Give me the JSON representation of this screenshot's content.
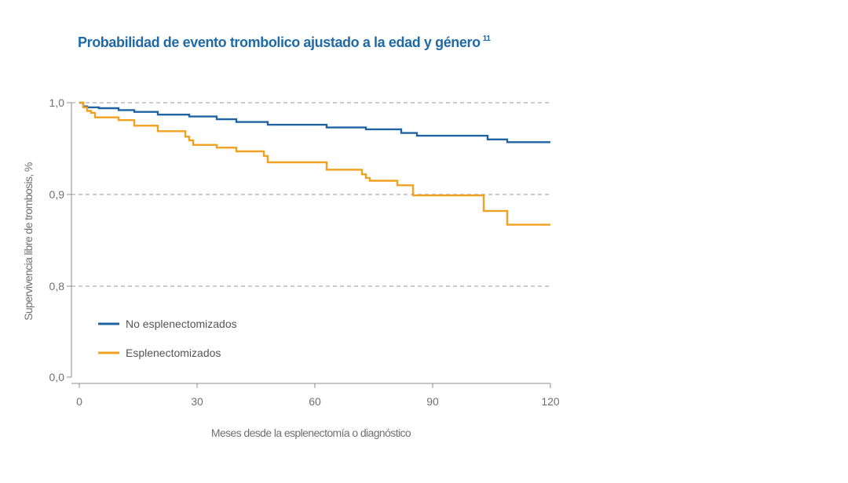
{
  "colors": {
    "title": "#1e6aa8",
    "axis": "#8c8c8c",
    "grid": "#9a9a9a",
    "text": "#707070",
    "legend_text": "#555555"
  },
  "chart_data": {
    "type": "line",
    "step": true,
    "title": "Probabilidad de evento trombolico ajustado a la edad y género",
    "title_superscript": "11",
    "xlabel": "Meses desde la esplenectomía o diagnóstico",
    "ylabel": "Supervivencia libre de trombosis, %",
    "xlim": [
      0,
      120
    ],
    "xticks": [
      "0",
      "30",
      "60",
      "90",
      "120"
    ],
    "yticks": [
      "0,0",
      "0,8",
      "0,9",
      "1,0"
    ],
    "y_axis_broken": true,
    "grid": "dashed horizontal at 0,8 / 0,9 / 1,0",
    "legend_position": "lower-left",
    "series": [
      {
        "name": "No esplenectomizados",
        "color": "#1f63a0",
        "x": [
          0,
          1,
          2,
          5,
          10,
          14,
          20,
          28,
          35,
          40,
          48,
          63,
          73,
          82,
          86,
          104,
          109,
          120
        ],
        "y": [
          1.0,
          0.996,
          0.995,
          0.994,
          0.992,
          0.99,
          0.987,
          0.985,
          0.982,
          0.979,
          0.976,
          0.973,
          0.971,
          0.967,
          0.964,
          0.96,
          0.957,
          0.957
        ]
      },
      {
        "name": "Esplenectomizados",
        "color": "#f0a11f",
        "x": [
          0,
          1,
          2,
          3,
          4,
          10,
          14,
          20,
          27,
          28,
          29,
          35,
          40,
          47,
          48,
          63,
          72,
          73,
          74,
          81,
          85,
          103,
          109,
          120
        ],
        "y": [
          1.0,
          0.995,
          0.991,
          0.989,
          0.984,
          0.981,
          0.975,
          0.969,
          0.963,
          0.959,
          0.954,
          0.951,
          0.947,
          0.942,
          0.935,
          0.927,
          0.922,
          0.918,
          0.915,
          0.91,
          0.899,
          0.882,
          0.867,
          0.867
        ]
      }
    ]
  }
}
